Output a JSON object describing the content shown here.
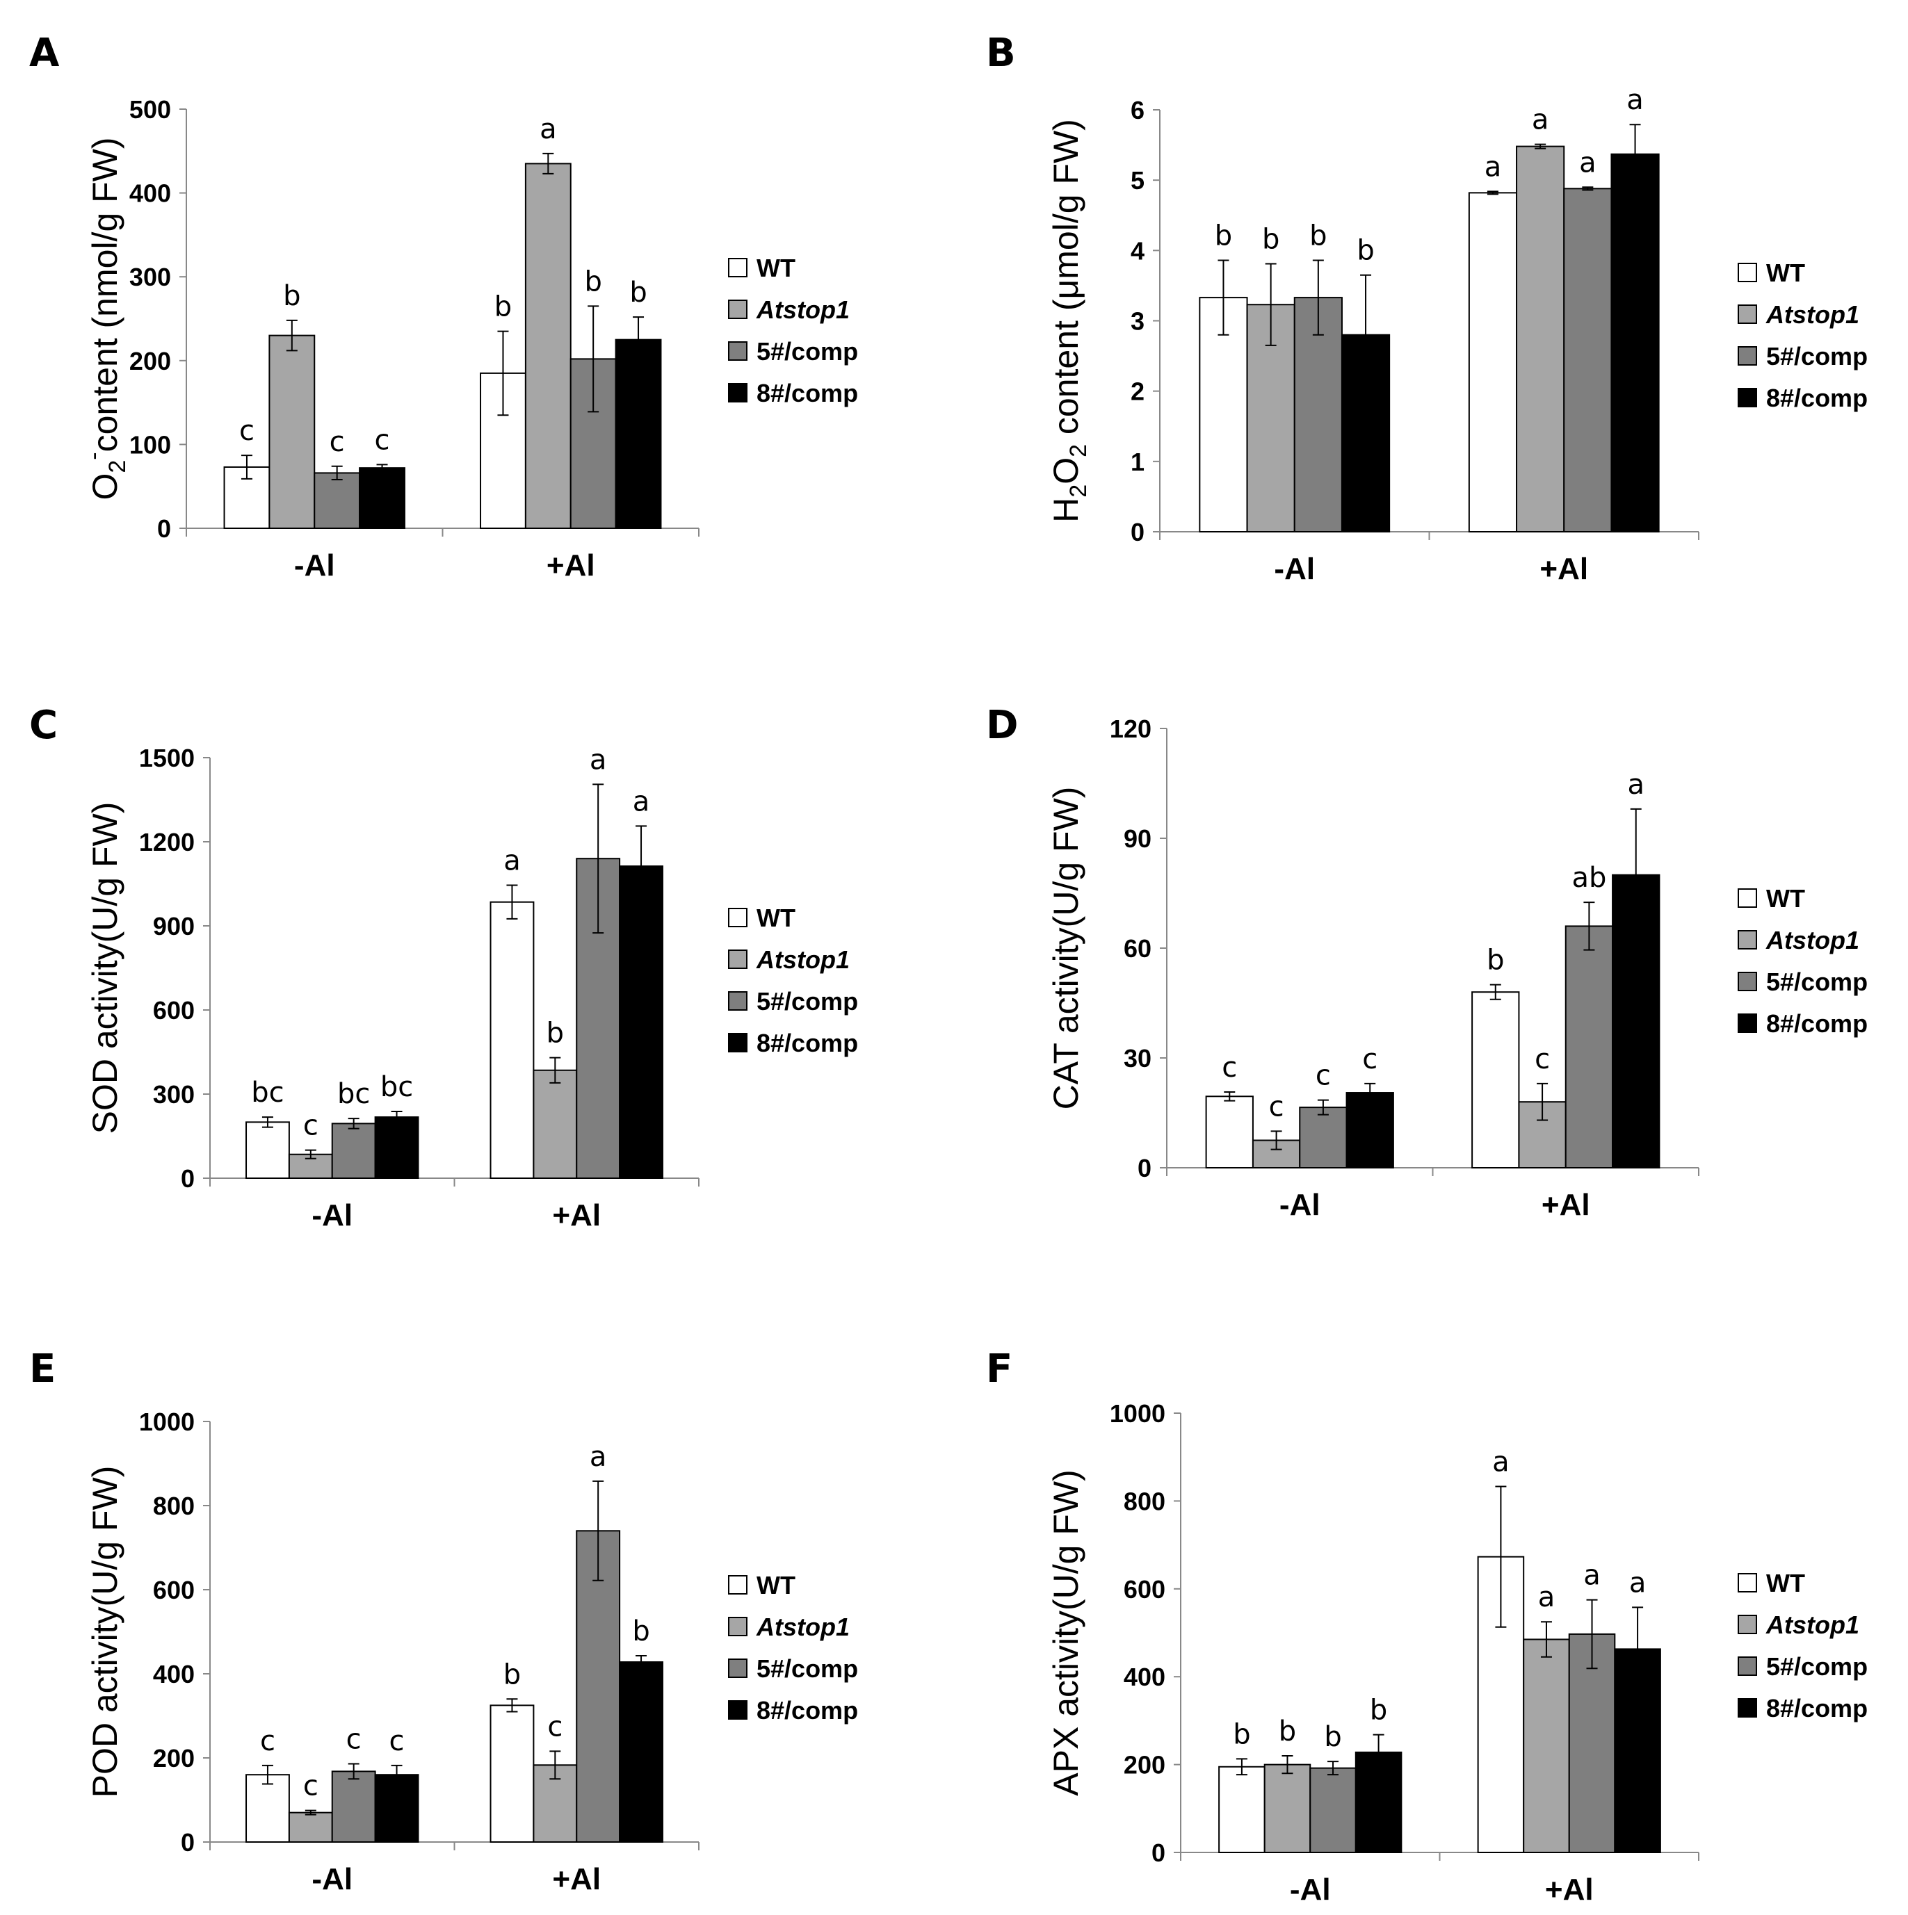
{
  "colors": {
    "WT": "#ffffff",
    "Atstop1": "#a6a6a6",
    "5#/comp": "#7f7f7f",
    "8#/comp": "#000000"
  },
  "chart_data": [
    {
      "panel": "A",
      "type": "bar",
      "ylabel_parts": {
        "pre": "O",
        "sub": "2",
        "sup": "-",
        "post": "content (nmol/g FW)"
      },
      "ylim": [
        0,
        500
      ],
      "yticks": [
        "0",
        "100",
        "200",
        "300",
        "400",
        "500"
      ],
      "categories": [
        "-Al",
        "+Al"
      ],
      "series": [
        {
          "name": "WT",
          "values": [
            73,
            185
          ],
          "errors": [
            14,
            50
          ],
          "letters": [
            "c",
            "b"
          ]
        },
        {
          "name": "Atstop1",
          "values": [
            230,
            435
          ],
          "errors": [
            18,
            12
          ],
          "letters": [
            "b",
            "a"
          ]
        },
        {
          "name": "5#/comp",
          "values": [
            66,
            202
          ],
          "errors": [
            8,
            63
          ],
          "letters": [
            "c",
            "b"
          ]
        },
        {
          "name": "8#/comp",
          "values": [
            72,
            225
          ],
          "errors": [
            4,
            27
          ],
          "letters": [
            "c",
            "b"
          ]
        }
      ]
    },
    {
      "panel": "B",
      "type": "bar",
      "ylabel_parts": {
        "pre": "H",
        "sub": "2",
        "mid": "O",
        "sub2": "2",
        "post": " content (μmol/g FW)"
      },
      "ylim": [
        0,
        6
      ],
      "yticks": [
        "0",
        "1",
        "2",
        "3",
        "4",
        "5",
        "6"
      ],
      "categories": [
        "-Al",
        "+Al"
      ],
      "series": [
        {
          "name": "WT",
          "values": [
            3.33,
            4.82
          ],
          "errors": [
            0.53,
            0.02
          ],
          "letters": [
            "b",
            "a"
          ]
        },
        {
          "name": "Atstop1",
          "values": [
            3.23,
            5.48
          ],
          "errors": [
            0.58,
            0.03
          ],
          "letters": [
            "b",
            "a"
          ]
        },
        {
          "name": "5#/comp",
          "values": [
            3.33,
            4.88
          ],
          "errors": [
            0.53,
            0.02
          ],
          "letters": [
            "b",
            "a"
          ]
        },
        {
          "name": "8#/comp",
          "values": [
            2.8,
            5.37
          ],
          "errors": [
            0.85,
            0.42
          ],
          "letters": [
            "b",
            "a"
          ]
        }
      ]
    },
    {
      "panel": "C",
      "type": "bar",
      "ylabel": "SOD activity(U/g FW)",
      "ylim": [
        0,
        1500
      ],
      "yticks": [
        "0",
        "300",
        "600",
        "900",
        "1200",
        "1500"
      ],
      "categories": [
        "-Al",
        "+Al"
      ],
      "series": [
        {
          "name": "WT",
          "values": [
            200,
            985
          ],
          "errors": [
            18,
            60
          ],
          "letters": [
            "bc",
            "a"
          ]
        },
        {
          "name": "Atstop1",
          "values": [
            85,
            385
          ],
          "errors": [
            15,
            45
          ],
          "letters": [
            "c",
            "b"
          ]
        },
        {
          "name": "5#/comp",
          "values": [
            195,
            1140
          ],
          "errors": [
            18,
            265
          ],
          "letters": [
            "bc",
            "a"
          ]
        },
        {
          "name": "8#/comp",
          "values": [
            218,
            1113
          ],
          "errors": [
            20,
            143
          ],
          "letters": [
            "bc",
            "a"
          ]
        }
      ]
    },
    {
      "panel": "D",
      "type": "bar",
      "ylabel": "CAT activity(U/g FW)",
      "ylim": [
        0,
        120
      ],
      "yticks": [
        "0",
        "30",
        "60",
        "90",
        "120"
      ],
      "categories": [
        "-Al",
        "+Al"
      ],
      "series": [
        {
          "name": "WT",
          "values": [
            19.5,
            48
          ],
          "errors": [
            1.2,
            2
          ],
          "letters": [
            "c",
            "b"
          ]
        },
        {
          "name": "Atstop1",
          "values": [
            7.5,
            18
          ],
          "errors": [
            2.5,
            5
          ],
          "letters": [
            "c",
            "c"
          ]
        },
        {
          "name": "5#/comp",
          "values": [
            16.5,
            66
          ],
          "errors": [
            2,
            6.5
          ],
          "letters": [
            "c",
            "ab"
          ]
        },
        {
          "name": "8#/comp",
          "values": [
            20.5,
            80
          ],
          "errors": [
            2.5,
            18
          ],
          "letters": [
            "c",
            "a"
          ]
        }
      ]
    },
    {
      "panel": "E",
      "type": "bar",
      "ylabel": "POD activity(U/g FW)",
      "ylim": [
        0,
        1000
      ],
      "yticks": [
        "0",
        "200",
        "400",
        "600",
        "800",
        "1000"
      ],
      "categories": [
        "-Al",
        "+Al"
      ],
      "series": [
        {
          "name": "WT",
          "values": [
            160,
            325
          ],
          "errors": [
            22,
            15
          ],
          "letters": [
            "c",
            "b"
          ]
        },
        {
          "name": "Atstop1",
          "values": [
            70,
            183
          ],
          "errors": [
            5,
            33
          ],
          "letters": [
            "c",
            "c"
          ]
        },
        {
          "name": "5#/comp",
          "values": [
            168,
            740
          ],
          "errors": [
            18,
            118
          ],
          "letters": [
            "c",
            "a"
          ]
        },
        {
          "name": "8#/comp",
          "values": [
            160,
            428
          ],
          "errors": [
            22,
            15
          ],
          "letters": [
            "c",
            "b"
          ]
        }
      ]
    },
    {
      "panel": "F",
      "type": "bar",
      "ylabel": "APX activity(U/g FW)",
      "ylim": [
        0,
        1000
      ],
      "yticks": [
        "0",
        "200",
        "400",
        "600",
        "800",
        "1000"
      ],
      "categories": [
        "-Al",
        "+Al"
      ],
      "series": [
        {
          "name": "WT",
          "values": [
            195,
            673
          ],
          "errors": [
            18,
            160
          ],
          "letters": [
            "b",
            "a"
          ]
        },
        {
          "name": "Atstop1",
          "values": [
            200,
            485
          ],
          "errors": [
            20,
            40
          ],
          "letters": [
            "b",
            "a"
          ]
        },
        {
          "name": "5#/comp",
          "values": [
            192,
            497
          ],
          "errors": [
            15,
            78
          ],
          "letters": [
            "b",
            "a"
          ]
        },
        {
          "name": "8#/comp",
          "values": [
            228,
            463
          ],
          "errors": [
            40,
            95
          ],
          "letters": [
            "b",
            "a"
          ]
        }
      ]
    }
  ]
}
